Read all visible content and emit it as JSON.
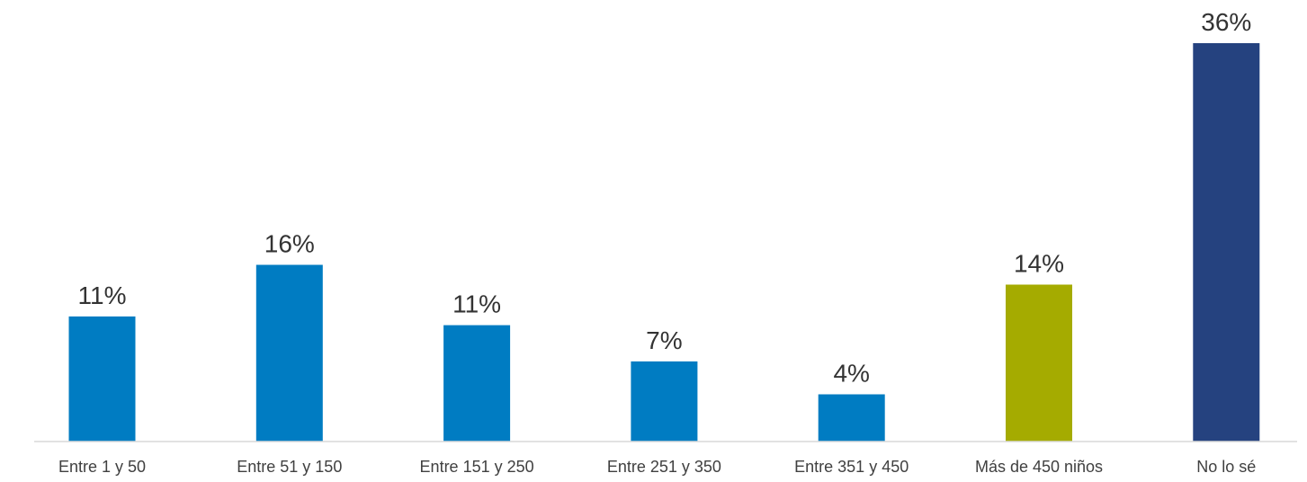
{
  "chart_data": {
    "type": "bar",
    "categories": [
      "Entre 1 y 50",
      "Entre 51 y 150",
      "Entre 151 y 250",
      "Entre 251 y 350",
      "Entre 351 y 450",
      "Más de 450 niños",
      "No lo sé"
    ],
    "values": [
      11.4,
      16.1,
      10.6,
      7.3,
      4.3,
      14.3,
      36.3
    ],
    "value_labels": [
      "11%",
      "16%",
      "11%",
      "7%",
      "4%",
      "14%",
      "36%"
    ],
    "bar_colors": [
      "#007cc2",
      "#007cc2",
      "#007cc2",
      "#007cc2",
      "#007cc2",
      "#a5ab00",
      "#25427f"
    ],
    "ylim": [
      0,
      36.3
    ],
    "grid": false,
    "legend": "none",
    "title": "",
    "xlabel": "",
    "ylabel": ""
  },
  "colors": {
    "axis_line": "#d9d9d9"
  }
}
